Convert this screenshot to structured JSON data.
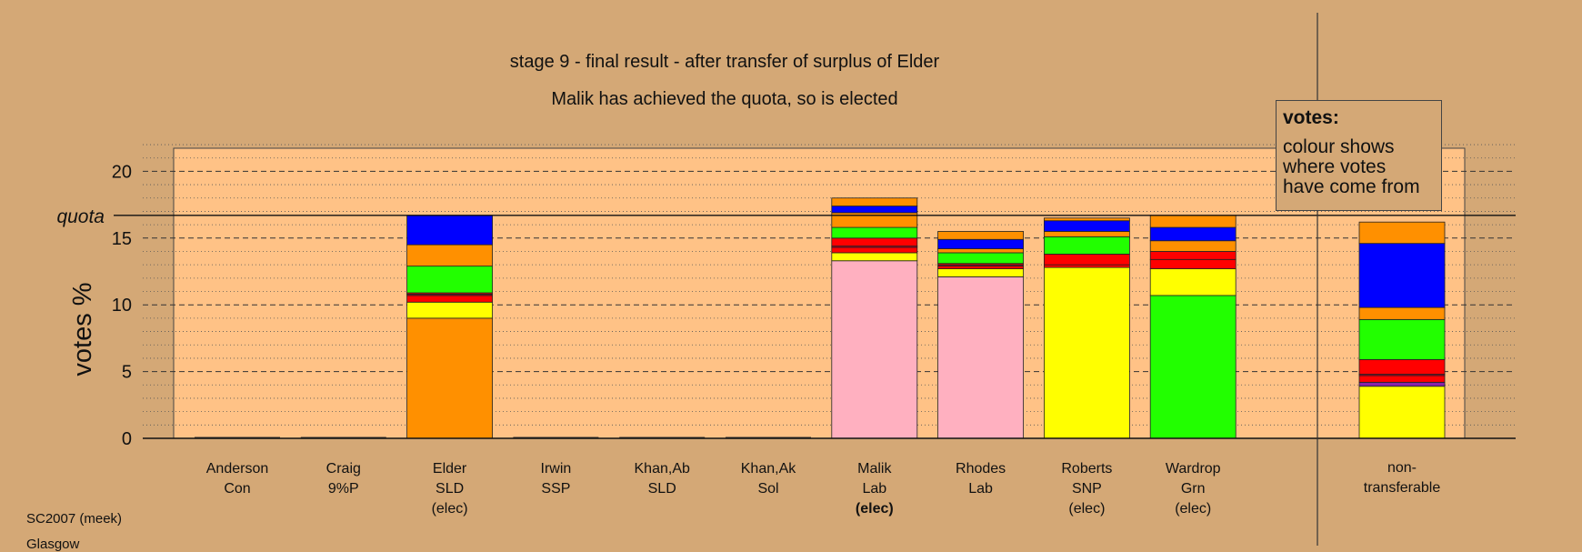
{
  "chart_data": {
    "type": "bar",
    "stacked": true,
    "title": "stage 9 - final result - after transfer of surplus of Elder",
    "subtitle": "Malik has achieved the quota, so is elected",
    "ylabel": "votes %",
    "xlabel": "",
    "ylim": [
      0,
      22
    ],
    "yticks": [
      0,
      5,
      10,
      15,
      20
    ],
    "quota": 16.7,
    "quota_label": "quota",
    "grid": true,
    "candidates": [
      {
        "name": "Anderson",
        "party": "Con",
        "status": ""
      },
      {
        "name": "Craig",
        "party": "9%P",
        "status": ""
      },
      {
        "name": "Elder",
        "party": "SLD",
        "status": "(elec)"
      },
      {
        "name": "Irwin",
        "party": "SSP",
        "status": ""
      },
      {
        "name": "Khan,Ab",
        "party": "SLD",
        "status": ""
      },
      {
        "name": "Khan,Ak",
        "party": "Sol",
        "status": ""
      },
      {
        "name": "Malik",
        "party": "Lab",
        "status": "(elec)",
        "status_bold": true
      },
      {
        "name": "Rhodes",
        "party": "Lab",
        "status": ""
      },
      {
        "name": "Roberts",
        "party": "SNP",
        "status": "(elec)"
      },
      {
        "name": "Wardrop",
        "party": "Grn",
        "status": "(elec)"
      }
    ],
    "nontransferable_label": [
      "non-",
      "transferable"
    ],
    "colors": {
      "lab": "#ffb0c0",
      "snp": "#ffff00",
      "grn": "#22ff00",
      "sld": "#ff9000",
      "con": "#0000ff",
      "ssp": "#ff0000",
      "sol": "#aa0022",
      "9p": "#8822aa"
    },
    "stacks": [
      [],
      [],
      [
        {
          "c": "sld",
          "v": 9.0
        },
        {
          "c": "snp",
          "v": 1.2
        },
        {
          "c": "ssp",
          "v": 0.5
        },
        {
          "c": "sol",
          "v": 0.1
        },
        {
          "c": "ssp",
          "v": 0.1
        },
        {
          "c": "grn",
          "v": 2.0
        },
        {
          "c": "sld",
          "v": 1.6
        },
        {
          "c": "con",
          "v": 2.2
        }
      ],
      [],
      [],
      [],
      [
        {
          "c": "lab",
          "v": 13.3
        },
        {
          "c": "snp",
          "v": 0.6
        },
        {
          "c": "ssp",
          "v": 0.4
        },
        {
          "c": "sol",
          "v": 0.1
        },
        {
          "c": "ssp",
          "v": 0.6
        },
        {
          "c": "grn",
          "v": 0.8
        },
        {
          "c": "sld",
          "v": 0.9
        },
        {
          "c": "sld",
          "v": 0.2
        },
        {
          "c": "con",
          "v": 0.5
        },
        {
          "c": "sld",
          "v": 0.6
        }
      ],
      [
        {
          "c": "lab",
          "v": 12.1
        },
        {
          "c": "snp",
          "v": 0.6
        },
        {
          "c": "ssp",
          "v": 0.2
        },
        {
          "c": "sol",
          "v": 0.1
        },
        {
          "c": "ssp",
          "v": 0.1
        },
        {
          "c": "grn",
          "v": 0.8
        },
        {
          "c": "sld",
          "v": 0.3
        },
        {
          "c": "con",
          "v": 0.7
        },
        {
          "c": "sld",
          "v": 0.6
        }
      ],
      [
        {
          "c": "snp",
          "v": 12.8
        },
        {
          "c": "ssp",
          "v": 0.2
        },
        {
          "c": "ssp",
          "v": 0.8
        },
        {
          "c": "grn",
          "v": 1.3
        },
        {
          "c": "sld",
          "v": 0.4
        },
        {
          "c": "con",
          "v": 0.8
        },
        {
          "c": "sld",
          "v": 0.2
        }
      ],
      [
        {
          "c": "grn",
          "v": 10.7
        },
        {
          "c": "snp",
          "v": 2.0
        },
        {
          "c": "ssp",
          "v": 0.7
        },
        {
          "c": "ssp",
          "v": 0.6
        },
        {
          "c": "sld",
          "v": 0.8
        },
        {
          "c": "con",
          "v": 1.0
        },
        {
          "c": "sld",
          "v": 0.9
        }
      ]
    ],
    "nontransferable": [
      {
        "c": "snp",
        "v": 3.9
      },
      {
        "c": "9p",
        "v": 0.3
      },
      {
        "c": "ssp",
        "v": 0.5
      },
      {
        "c": "sol",
        "v": 0.1
      },
      {
        "c": "ssp",
        "v": 1.1
      },
      {
        "c": "grn",
        "v": 3.0
      },
      {
        "c": "sld",
        "v": 0.9
      },
      {
        "c": "con",
        "v": 4.8
      },
      {
        "c": "sld",
        "v": 1.6
      }
    ]
  },
  "legend": {
    "title": "votes:",
    "lines": [
      "colour shows",
      "where votes",
      "have come from"
    ]
  },
  "footer": {
    "line1": "SC2007 (meek)",
    "line2": "Glasgow"
  }
}
